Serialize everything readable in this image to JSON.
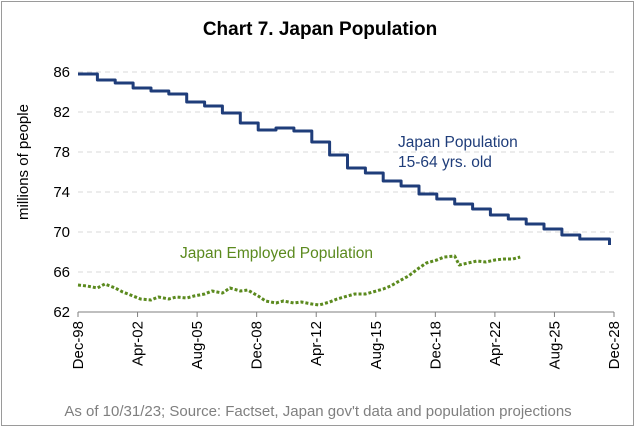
{
  "chart_data": {
    "type": "line",
    "title": "Chart 7. Japan Population",
    "ylabel": "millions of people",
    "xlabel": "",
    "ylim": [
      62,
      86
    ],
    "yticks": [
      62,
      66,
      70,
      74,
      78,
      82,
      86
    ],
    "x_range": [
      "1998-12",
      "2028-12"
    ],
    "x_tick_labels": [
      "Dec-98",
      "Apr-02",
      "Aug-05",
      "Dec-08",
      "Apr-12",
      "Aug-15",
      "Dec-18",
      "Apr-22",
      "Aug-25",
      "Dec-28"
    ],
    "x_tick_dates": [
      "1998-12",
      "2002-04",
      "2005-08",
      "2008-12",
      "2012-04",
      "2015-08",
      "2018-12",
      "2022-04",
      "2025-08",
      "2028-12"
    ],
    "grid": "horizontal dashed",
    "series": [
      {
        "name": "Japan Population 15-64 yrs. old",
        "label_lines": [
          "Japan Population",
          "15-64 yrs. old"
        ],
        "color": "#1f3d7a",
        "style": "solid step",
        "points": [
          [
            "1998-12",
            85.8
          ],
          [
            "2000-01",
            85.8
          ],
          [
            "2000-01",
            85.2
          ],
          [
            "2001-01",
            85.2
          ],
          [
            "2001-01",
            84.9
          ],
          [
            "2002-01",
            84.9
          ],
          [
            "2002-01",
            84.4
          ],
          [
            "2003-01",
            84.4
          ],
          [
            "2003-01",
            84.1
          ],
          [
            "2004-01",
            84.1
          ],
          [
            "2004-01",
            83.8
          ],
          [
            "2005-01",
            83.8
          ],
          [
            "2005-01",
            83.0
          ],
          [
            "2006-01",
            83.0
          ],
          [
            "2006-01",
            82.6
          ],
          [
            "2007-01",
            82.6
          ],
          [
            "2007-01",
            81.9
          ],
          [
            "2008-01",
            81.9
          ],
          [
            "2008-01",
            80.9
          ],
          [
            "2009-01",
            80.9
          ],
          [
            "2009-01",
            80.2
          ],
          [
            "2010-01",
            80.2
          ],
          [
            "2010-01",
            80.4
          ],
          [
            "2011-01",
            80.4
          ],
          [
            "2011-01",
            80.1
          ],
          [
            "2012-01",
            80.1
          ],
          [
            "2012-01",
            79.0
          ],
          [
            "2013-01",
            79.0
          ],
          [
            "2013-01",
            77.7
          ],
          [
            "2014-01",
            77.7
          ],
          [
            "2014-01",
            76.4
          ],
          [
            "2015-01",
            76.4
          ],
          [
            "2015-01",
            75.9
          ],
          [
            "2016-01",
            75.9
          ],
          [
            "2016-01",
            75.1
          ],
          [
            "2017-01",
            75.1
          ],
          [
            "2017-01",
            74.6
          ],
          [
            "2018-01",
            74.6
          ],
          [
            "2018-01",
            73.8
          ],
          [
            "2019-01",
            73.8
          ],
          [
            "2019-01",
            73.3
          ],
          [
            "2020-01",
            73.3
          ],
          [
            "2020-01",
            72.8
          ],
          [
            "2021-01",
            72.8
          ],
          [
            "2021-01",
            72.3
          ],
          [
            "2022-01",
            72.3
          ],
          [
            "2022-01",
            71.7
          ],
          [
            "2023-01",
            71.7
          ],
          [
            "2023-01",
            71.3
          ],
          [
            "2024-01",
            71.3
          ],
          [
            "2024-01",
            70.8
          ],
          [
            "2025-01",
            70.8
          ],
          [
            "2025-01",
            70.3
          ],
          [
            "2026-01",
            70.3
          ],
          [
            "2026-01",
            69.7
          ],
          [
            "2027-01",
            69.7
          ],
          [
            "2027-01",
            69.3
          ],
          [
            "2028-09",
            69.3
          ],
          [
            "2028-09",
            68.7
          ]
        ]
      },
      {
        "name": "Japan Employed Population",
        "label_lines": [
          "Japan Employed Population"
        ],
        "color": "#5b8a1e",
        "style": "dotted",
        "points": [
          [
            "1998-12",
            64.7
          ],
          [
            "1999-06",
            64.6
          ],
          [
            "2000-01",
            64.4
          ],
          [
            "2000-06",
            64.8
          ],
          [
            "2001-01",
            64.4
          ],
          [
            "2001-06",
            64.0
          ],
          [
            "2002-01",
            63.6
          ],
          [
            "2002-06",
            63.3
          ],
          [
            "2003-01",
            63.2
          ],
          [
            "2003-06",
            63.5
          ],
          [
            "2004-01",
            63.3
          ],
          [
            "2004-06",
            63.5
          ],
          [
            "2005-01",
            63.4
          ],
          [
            "2005-06",
            63.6
          ],
          [
            "2006-01",
            63.8
          ],
          [
            "2006-06",
            64.1
          ],
          [
            "2007-01",
            63.9
          ],
          [
            "2007-06",
            64.4
          ],
          [
            "2008-01",
            64.1
          ],
          [
            "2008-06",
            64.2
          ],
          [
            "2009-01",
            63.6
          ],
          [
            "2009-06",
            63.1
          ],
          [
            "2010-01",
            62.9
          ],
          [
            "2010-06",
            63.1
          ],
          [
            "2011-01",
            62.9
          ],
          [
            "2011-06",
            63.0
          ],
          [
            "2012-01",
            62.8
          ],
          [
            "2012-06",
            62.7
          ],
          [
            "2013-01",
            63.0
          ],
          [
            "2013-06",
            63.3
          ],
          [
            "2014-01",
            63.6
          ],
          [
            "2014-06",
            63.8
          ],
          [
            "2015-01",
            63.8
          ],
          [
            "2015-06",
            64.0
          ],
          [
            "2016-01",
            64.3
          ],
          [
            "2016-06",
            64.6
          ],
          [
            "2017-01",
            65.2
          ],
          [
            "2017-06",
            65.6
          ],
          [
            "2018-01",
            66.4
          ],
          [
            "2018-06",
            66.9
          ],
          [
            "2019-01",
            67.2
          ],
          [
            "2019-06",
            67.5
          ],
          [
            "2020-01",
            67.6
          ],
          [
            "2020-04",
            66.7
          ],
          [
            "2020-10",
            66.9
          ],
          [
            "2021-04",
            67.1
          ],
          [
            "2021-10",
            67.0
          ],
          [
            "2022-04",
            67.2
          ],
          [
            "2022-10",
            67.3
          ],
          [
            "2023-04",
            67.3
          ],
          [
            "2023-09",
            67.5
          ]
        ]
      }
    ],
    "source_note": "As of 10/31/23; Source: Factset, Japan gov't data and population projections"
  }
}
